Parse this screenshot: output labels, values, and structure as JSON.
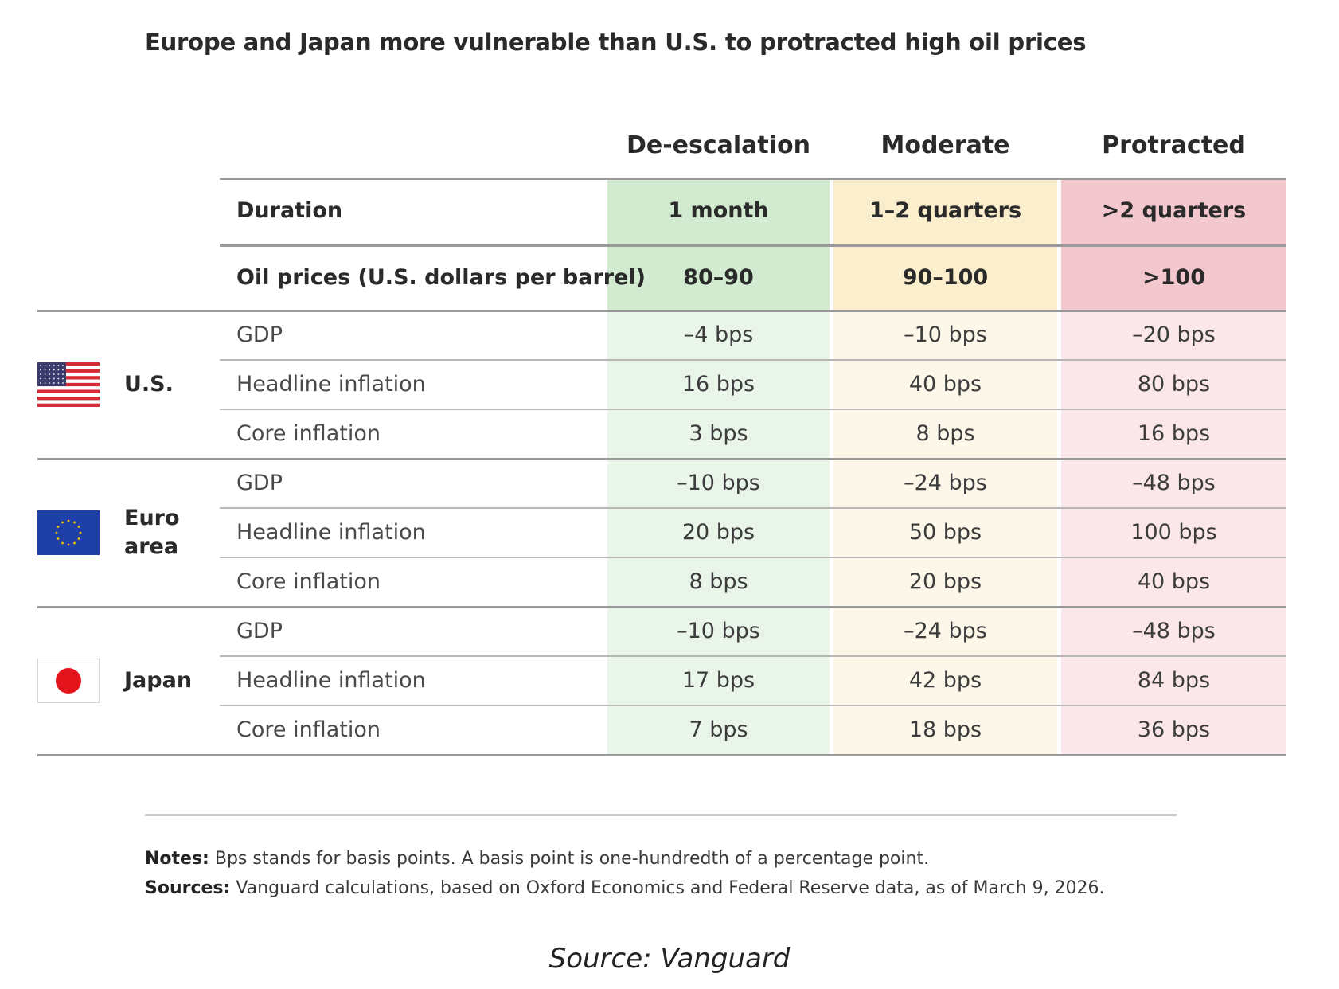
{
  "title": "Europe and Japan more vulnerable than U.S. to protracted high oil prices",
  "colors": {
    "deescalation_header": "#d1ead0",
    "deescalation_body": "#eaf5e9",
    "moderate_header": "#fbeecd",
    "moderate_body": "#fdf7e9",
    "protracted_header": "#f3c7ce",
    "protracted_body": "#fbe6e9",
    "us_flag_blue": "#3c3b6e",
    "us_flag_red": "#d62b35",
    "eu_flag_blue": "#1d3fa6",
    "eu_flag_stars": "#f2c200",
    "japan_flag_red": "#e3141c"
  },
  "chart_data": {
    "type": "table",
    "title": "Europe and Japan more vulnerable than U.S. to protracted high oil prices",
    "scenarios": [
      "De-escalation",
      "Moderate",
      "Protracted"
    ],
    "scenario_rows": [
      {
        "label": "Duration",
        "values": [
          "1 month",
          "1–2 quarters",
          ">2 quarters"
        ]
      },
      {
        "label": "Oil prices (U.S. dollars per barrel)",
        "values": [
          "80–90",
          "90–100",
          ">100"
        ]
      }
    ],
    "regions": [
      {
        "name": "U.S.",
        "flag_icon": "us-flag-icon",
        "rows": [
          {
            "metric": "GDP",
            "values": [
              "–4 bps",
              "–10 bps",
              "–20 bps"
            ]
          },
          {
            "metric": "Headline inflation",
            "values": [
              "16 bps",
              "40 bps",
              "80 bps"
            ]
          },
          {
            "metric": "Core inflation",
            "values": [
              "3 bps",
              "8 bps",
              "16 bps"
            ]
          }
        ]
      },
      {
        "name": "Euro area",
        "flag_icon": "eu-flag-icon",
        "rows": [
          {
            "metric": "GDP",
            "values": [
              "–10 bps",
              "–24 bps",
              "–48 bps"
            ]
          },
          {
            "metric": "Headline inflation",
            "values": [
              "20 bps",
              "50 bps",
              "100 bps"
            ]
          },
          {
            "metric": "Core inflation",
            "values": [
              "8 bps",
              "20 bps",
              "40 bps"
            ]
          }
        ]
      },
      {
        "name": "Japan",
        "flag_icon": "japan-flag-icon",
        "rows": [
          {
            "metric": "GDP",
            "values": [
              "–10 bps",
              "–24 bps",
              "–48 bps"
            ]
          },
          {
            "metric": "Headline inflation",
            "values": [
              "17 bps",
              "42 bps",
              "84 bps"
            ]
          },
          {
            "metric": "Core inflation",
            "values": [
              "7 bps",
              "18 bps",
              "36 bps"
            ]
          }
        ]
      }
    ]
  },
  "notes": {
    "notes_label": "Notes:",
    "notes_text": "Bps stands for basis points. A basis point is one-hundredth of a percentage point.",
    "sources_label": "Sources:",
    "sources_text": "Vanguard calculations, based on Oxford Economics and Federal Reserve data, as of March 9, 2026."
  },
  "source_caption": "Source: Vanguard"
}
